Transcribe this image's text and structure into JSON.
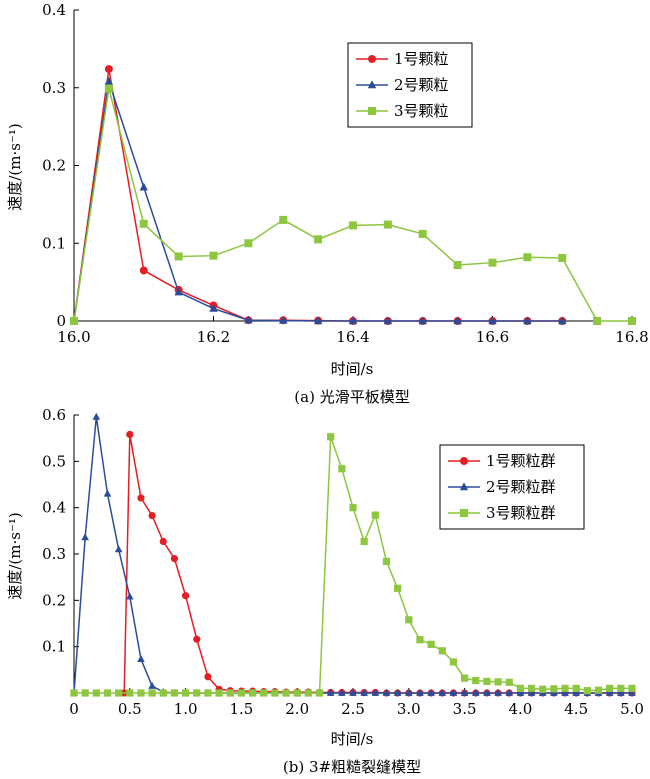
{
  "chart_data": [
    {
      "id": "a",
      "type": "line",
      "caption": "(a) 光滑平板模型",
      "xlabel": "时间/s",
      "ylabel": "速度/(m·s⁻¹)",
      "xlim": [
        16.0,
        16.8
      ],
      "ylim": [
        0,
        0.4
      ],
      "xticks": [
        16.0,
        16.2,
        16.4,
        16.6,
        16.8
      ],
      "xtick_labels": [
        "16.0",
        "16.2",
        "16.4",
        "16.6",
        "16.8"
      ],
      "yticks": [
        0,
        0.1,
        0.2,
        0.3,
        0.4
      ],
      "ytick_labels": [
        "0",
        "0.1",
        "0.2",
        "0.3",
        "0.4"
      ],
      "legend_position": "top-right",
      "series": [
        {
          "name": "1号颗粒",
          "color": "#e31e24",
          "marker": "circle",
          "x": [
            16.0,
            16.05,
            16.1,
            16.15,
            16.2,
            16.25,
            16.3,
            16.35,
            16.4,
            16.45,
            16.5,
            16.55,
            16.6,
            16.65,
            16.7
          ],
          "y": [
            0.0,
            0.324,
            0.065,
            0.04,
            0.02,
            0.001,
            0.001,
            0.0005,
            0.0,
            0.0,
            0.0,
            0.0,
            0.0,
            0.0,
            0.0
          ]
        },
        {
          "name": "2号颗粒",
          "color": "#2b4c9b",
          "marker": "triangle",
          "x": [
            16.0,
            16.05,
            16.1,
            16.15,
            16.2,
            16.25,
            16.3,
            16.35,
            16.4,
            16.45,
            16.5,
            16.55,
            16.6,
            16.65,
            16.7
          ],
          "y": [
            0.0,
            0.308,
            0.172,
            0.037,
            0.016,
            0.001,
            0.0005,
            0.0,
            0.0,
            0.0,
            0.0,
            0.0,
            0.0,
            0.0,
            0.0
          ]
        },
        {
          "name": "3号颗粒",
          "color": "#8dc63f",
          "marker": "square",
          "x": [
            16.0,
            16.05,
            16.1,
            16.15,
            16.2,
            16.25,
            16.3,
            16.35,
            16.4,
            16.45,
            16.5,
            16.55,
            16.6,
            16.65,
            16.7,
            16.75,
            16.8
          ],
          "y": [
            0.0,
            0.299,
            0.125,
            0.083,
            0.084,
            0.1,
            0.13,
            0.105,
            0.123,
            0.124,
            0.112,
            0.072,
            0.075,
            0.082,
            0.081,
            0.0,
            0.0
          ]
        }
      ]
    },
    {
      "id": "b",
      "type": "line",
      "caption": "(b) 3#粗糙裂缝模型",
      "xlabel": "时间/s",
      "ylabel": "速度/(m·s⁻¹)",
      "xlim": [
        0,
        5.0
      ],
      "ylim": [
        0,
        0.6
      ],
      "xticks": [
        0,
        0.5,
        1.0,
        1.5,
        2.0,
        2.5,
        3.0,
        3.5,
        4.0,
        4.5,
        5.0
      ],
      "xtick_labels": [
        "0",
        "0.5",
        "1.0",
        "1.5",
        "2.0",
        "2.5",
        "3.0",
        "3.5",
        "4.0",
        "4.5",
        "5.0"
      ],
      "yticks": [
        0.1,
        0.2,
        0.3,
        0.4,
        0.5,
        0.6
      ],
      "ytick_labels": [
        "0.1",
        "0.2",
        "0.3",
        "0.4",
        "0.5",
        "0.6"
      ],
      "legend_position": "top-right",
      "series": [
        {
          "name": "1号颗粒群",
          "color": "#e31e24",
          "marker": "circle",
          "x": [
            0.45,
            0.5,
            0.6,
            0.7,
            0.8,
            0.9,
            1.0,
            1.1,
            1.2,
            1.3,
            1.4,
            1.5,
            1.6,
            1.7,
            1.8,
            1.9,
            2.0,
            2.1,
            2.2,
            2.3,
            2.4,
            2.5,
            2.6,
            2.7,
            2.8,
            2.9,
            3.0,
            3.1,
            3.2,
            3.3,
            3.4,
            3.5,
            3.6,
            3.7,
            3.8,
            3.9,
            4.0,
            4.1,
            4.2,
            4.3,
            4.4,
            4.5,
            4.6,
            4.7,
            4.8,
            4.9,
            5.0
          ],
          "y": [
            0.0,
            0.558,
            0.421,
            0.383,
            0.327,
            0.29,
            0.21,
            0.116,
            0.035,
            0.008,
            0.005,
            0.004,
            0.004,
            0.003,
            0.003,
            0.002,
            0.002,
            0.002,
            0.001,
            0.001,
            0.001,
            0.001,
            0.001,
            0.001,
            0.0,
            0.0,
            0.0,
            0.0,
            0.0,
            0.0,
            0.0,
            0.0,
            0.0,
            0.0,
            0.0,
            0.0,
            0.0,
            0.0,
            0.0,
            0.0,
            0.0,
            0.0,
            0.0,
            0.0,
            0.0,
            0.0,
            0.0
          ]
        },
        {
          "name": "2号颗粒群",
          "color": "#2b4c9b",
          "marker": "triangle",
          "x": [
            0.0,
            0.1,
            0.2,
            0.3,
            0.4,
            0.5,
            0.6,
            0.7,
            0.8,
            0.9,
            1.0,
            1.1,
            1.2,
            1.3,
            1.4,
            1.5,
            1.6,
            1.7,
            1.8,
            1.9,
            2.0,
            2.1,
            2.2,
            2.3,
            2.4,
            2.5,
            2.6,
            2.7,
            2.8,
            2.9,
            3.0,
            3.1,
            3.2,
            3.3,
            3.4,
            3.5,
            3.6,
            3.7,
            3.8,
            3.9,
            4.0,
            4.1,
            4.2,
            4.3,
            4.4,
            4.5,
            4.6,
            4.7,
            4.8,
            4.9,
            5.0
          ],
          "y": [
            0.0,
            0.336,
            0.596,
            0.43,
            0.31,
            0.208,
            0.073,
            0.015,
            0.002,
            0.0,
            0.0,
            0.0,
            0.0,
            0.0,
            0.0,
            0.0,
            0.0,
            0.0,
            0.0,
            0.0,
            0.0,
            0.0,
            0.0,
            0.0,
            0.0,
            0.0,
            0.0,
            0.0,
            0.0,
            0.0,
            0.0,
            0.0,
            0.0,
            0.0,
            0.0,
            0.0,
            0.0,
            0.0,
            0.0,
            0.0,
            0.0,
            0.0,
            0.0,
            0.0,
            0.0,
            0.0,
            0.0,
            0.0,
            0.0,
            0.0,
            0.0
          ]
        },
        {
          "name": "3号颗粒群",
          "color": "#8dc63f",
          "marker": "square",
          "x": [
            0.0,
            0.1,
            0.2,
            0.3,
            0.4,
            0.5,
            0.6,
            0.7,
            0.8,
            0.9,
            1.0,
            1.1,
            1.2,
            1.3,
            1.4,
            1.5,
            1.6,
            1.7,
            1.8,
            1.9,
            2.0,
            2.1,
            2.2,
            2.3,
            2.4,
            2.5,
            2.6,
            2.7,
            2.8,
            2.9,
            3.0,
            3.1,
            3.2,
            3.3,
            3.4,
            3.5,
            3.6,
            3.7,
            3.8,
            3.9,
            4.0,
            4.1,
            4.2,
            4.3,
            4.4,
            4.5,
            4.6,
            4.7,
            4.8,
            4.9,
            5.0
          ],
          "y": [
            0.0,
            0.0,
            0.0,
            0.0,
            0.0,
            0.0,
            0.0,
            0.0,
            0.0,
            0.0,
            0.0,
            0.0,
            0.0,
            0.0,
            0.0,
            0.0,
            0.0,
            0.0,
            0.0,
            0.0,
            0.0,
            0.0,
            0.0,
            0.553,
            0.484,
            0.4,
            0.327,
            0.384,
            0.284,
            0.226,
            0.158,
            0.115,
            0.105,
            0.091,
            0.067,
            0.032,
            0.027,
            0.025,
            0.024,
            0.023,
            0.01,
            0.01,
            0.008,
            0.009,
            0.01,
            0.01,
            0.005,
            0.006,
            0.01,
            0.01,
            0.01
          ]
        }
      ]
    }
  ]
}
